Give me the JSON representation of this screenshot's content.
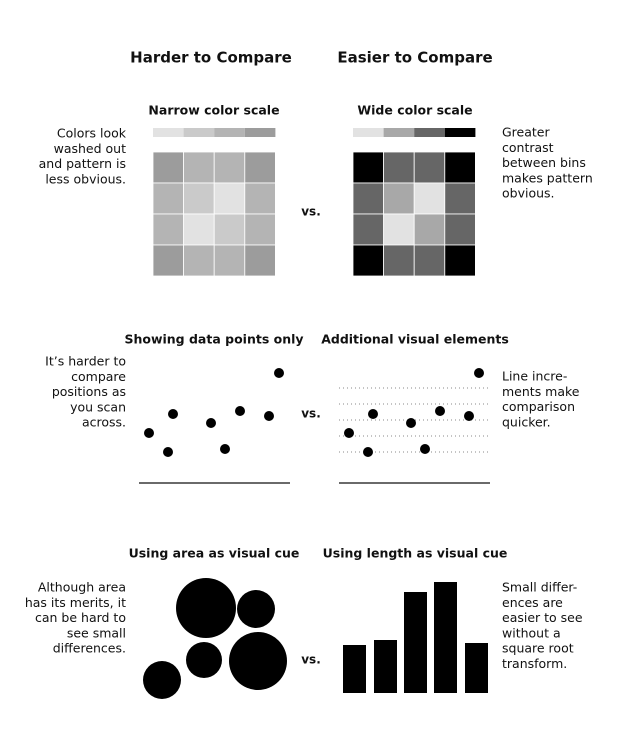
{
  "header": {
    "left": "Harder to Compare",
    "right": "Easier to Compare"
  },
  "sections": [
    {
      "left_title": "Narrow color scale",
      "right_title": "Wide color scale",
      "left_note": [
        "Colors look",
        "washed out",
        "and pattern is",
        "less obvious."
      ],
      "right_note": [
        "Greater",
        "contrast",
        "between bins",
        "makes pattern",
        "obvious."
      ],
      "vs": "vs."
    },
    {
      "left_title": "Showing data points only",
      "right_title": "Additional visual elements",
      "left_note": [
        "It’s harder to",
        "compare",
        "positions as",
        "you scan",
        "across."
      ],
      "right_note": [
        "Line incre-",
        "ments make",
        "comparison",
        "quicker."
      ],
      "vs": "vs."
    },
    {
      "left_title": "Using area as visual cue",
      "right_title": "Using length as visual cue",
      "left_note": [
        "Although area",
        "has its merits, it",
        "can be hard to",
        "see small",
        "differences."
      ],
      "right_note": [
        "Small differ-",
        "ences are",
        "easier to see",
        "without a",
        "square root",
        "transform."
      ],
      "vs": "vs."
    }
  ]
}
